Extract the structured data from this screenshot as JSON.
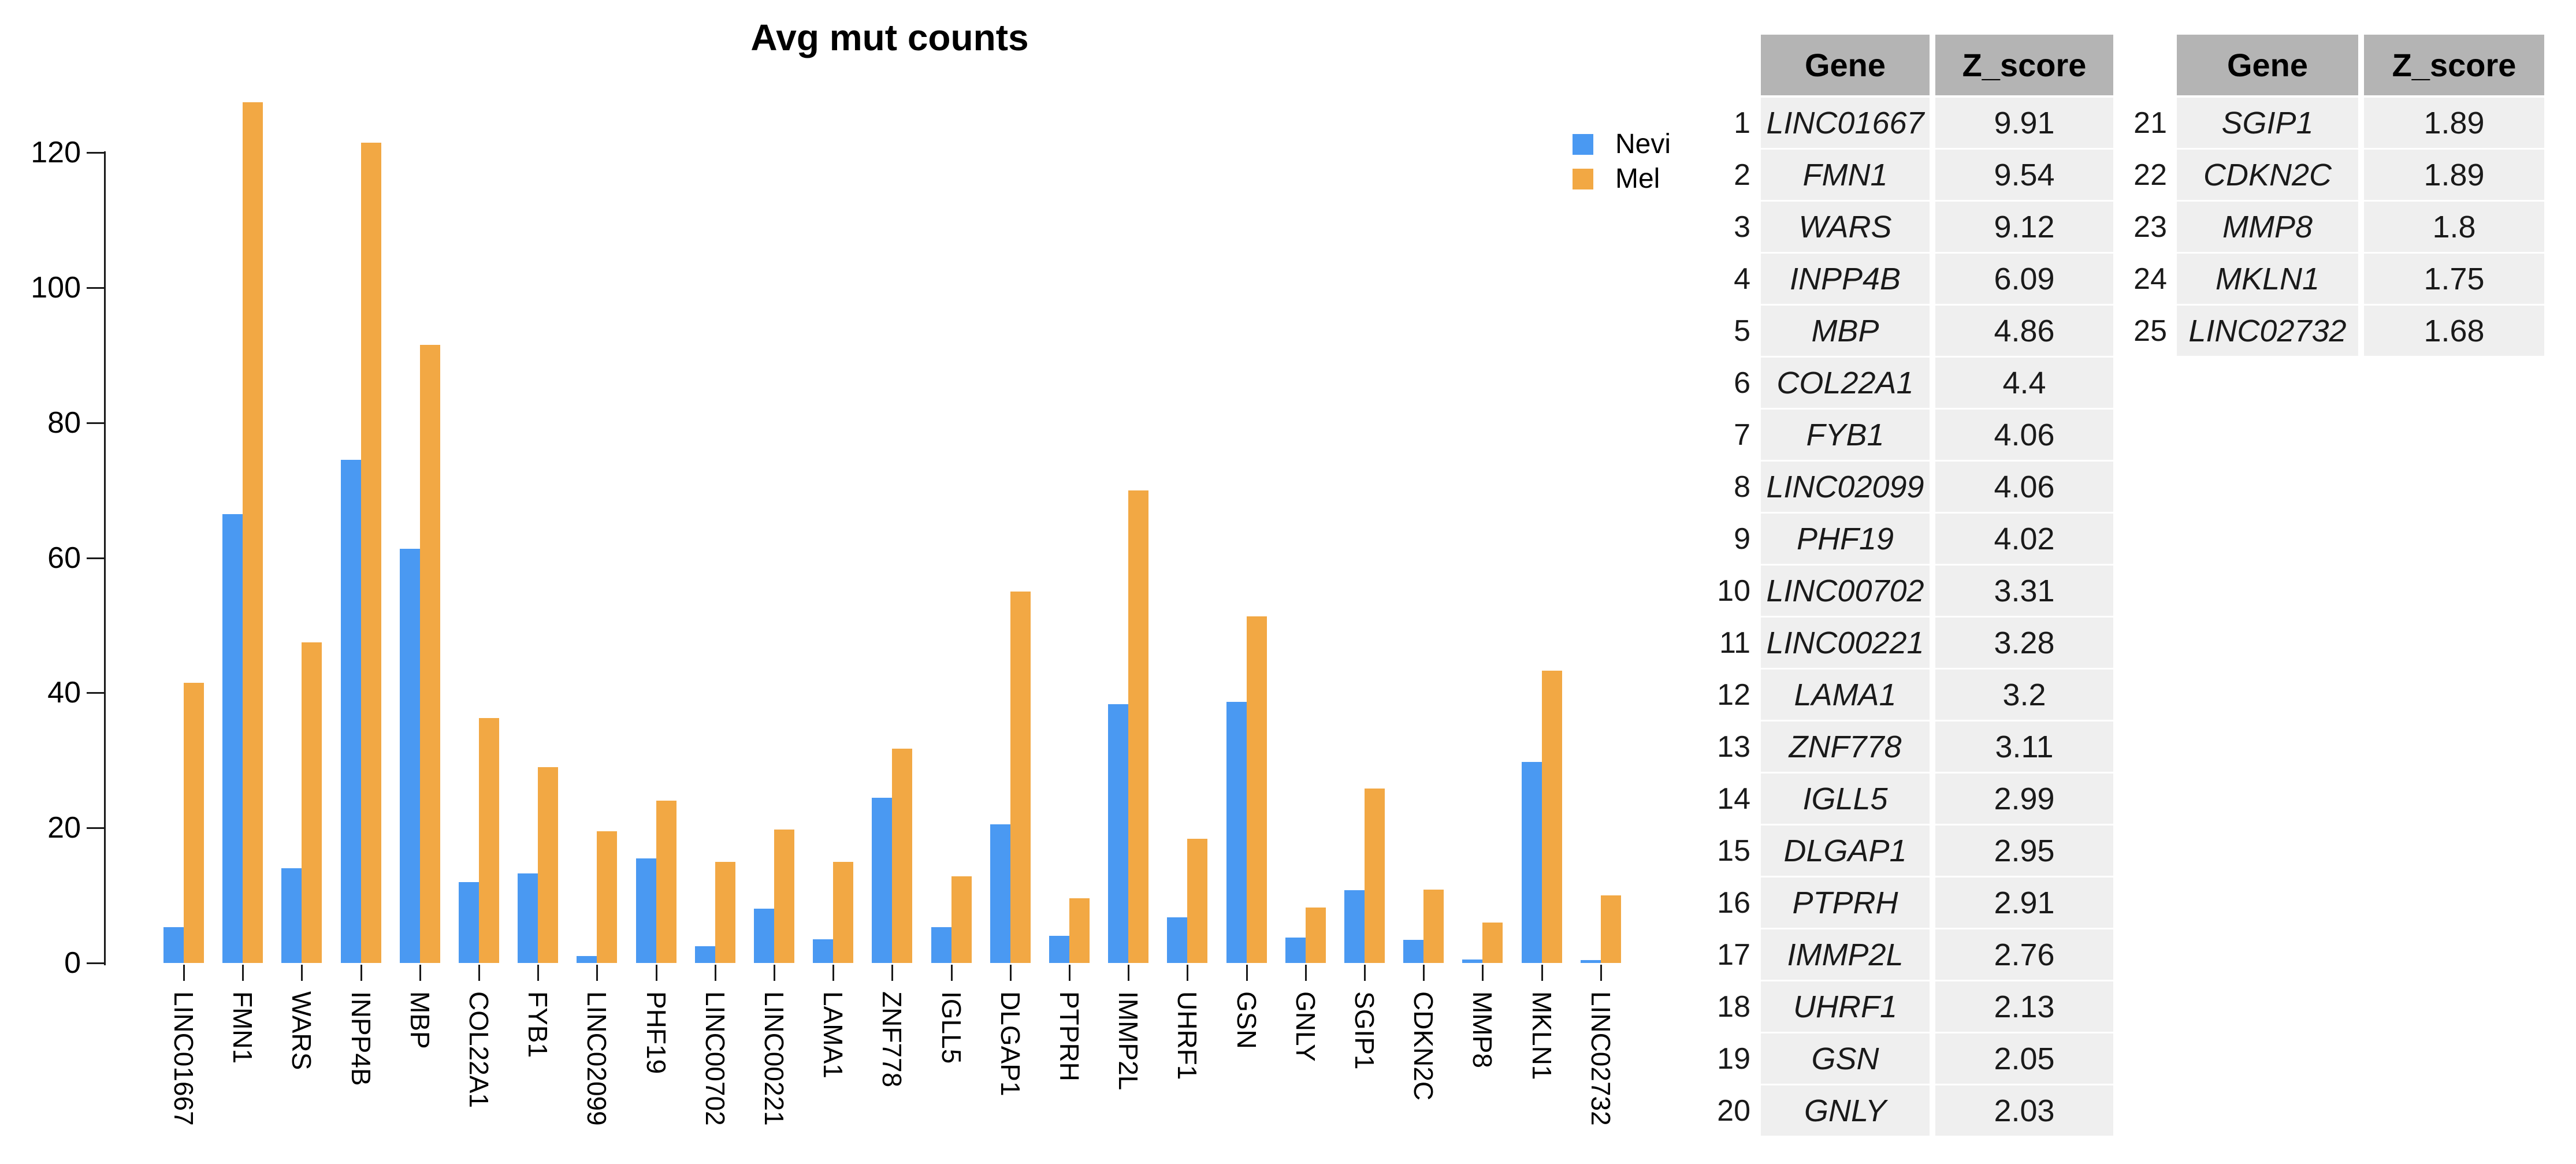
{
  "title": "Avg mut counts",
  "legend": {
    "items": [
      {
        "label": "Nevi",
        "color": "#4a99f2"
      },
      {
        "label": "Mel",
        "color": "#f2a844"
      }
    ]
  },
  "chart_data": {
    "type": "bar",
    "title": "Avg mut counts",
    "categories": [
      "LINC01667",
      "FMN1",
      "WARS",
      "INPP4B",
      "MBP",
      "COL22A1",
      "FYB1",
      "LINC02099",
      "PHF19",
      "LINC00702",
      "LINC00221",
      "LAMA1",
      "ZNF778",
      "IGLL5",
      "DLGAP1",
      "PTPRH",
      "IMMP2L",
      "UHRF1",
      "GSN",
      "GNLY",
      "SGIP1",
      "CDKN2C",
      "MMP8",
      "MKLN1",
      "LINC02732"
    ],
    "series": [
      {
        "name": "Nevi",
        "color": "#4a99f2",
        "values": [
          5.3,
          66.5,
          14,
          74.5,
          61.3,
          12,
          13.3,
          1,
          15.5,
          2.5,
          8,
          3.5,
          24.5,
          5.3,
          20.5,
          4,
          38.3,
          6.8,
          38.7,
          3.8,
          10.8,
          3.4,
          0.5,
          29.8,
          0.4
        ]
      },
      {
        "name": "Mel",
        "color": "#f2a844",
        "values": [
          41.5,
          127.5,
          47.5,
          121.5,
          91.5,
          36.3,
          29,
          19.5,
          24,
          15,
          19.8,
          15,
          31.7,
          12.8,
          55,
          9.6,
          70,
          18.4,
          51.3,
          8.2,
          25.8,
          10.9,
          6,
          43.3,
          10
        ]
      }
    ],
    "xlabel": "",
    "ylabel": "",
    "ylim": [
      0,
      130
    ],
    "yticks": [
      0,
      20,
      40,
      60,
      80,
      100,
      120
    ],
    "grid": false,
    "legend_position": "top-right"
  },
  "tables": [
    {
      "headers": [
        "Gene",
        "Z_score"
      ],
      "rows": [
        {
          "rank": "1",
          "gene": "LINC01667",
          "z": "9.91"
        },
        {
          "rank": "2",
          "gene": "FMN1",
          "z": "9.54"
        },
        {
          "rank": "3",
          "gene": "WARS",
          "z": "9.12"
        },
        {
          "rank": "4",
          "gene": "INPP4B",
          "z": "6.09"
        },
        {
          "rank": "5",
          "gene": "MBP",
          "z": "4.86"
        },
        {
          "rank": "6",
          "gene": "COL22A1",
          "z": "4.4"
        },
        {
          "rank": "7",
          "gene": "FYB1",
          "z": "4.06"
        },
        {
          "rank": "8",
          "gene": "LINC02099",
          "z": "4.06"
        },
        {
          "rank": "9",
          "gene": "PHF19",
          "z": "4.02"
        },
        {
          "rank": "10",
          "gene": "LINC00702",
          "z": "3.31"
        },
        {
          "rank": "11",
          "gene": "LINC00221",
          "z": "3.28"
        },
        {
          "rank": "12",
          "gene": "LAMA1",
          "z": "3.2"
        },
        {
          "rank": "13",
          "gene": "ZNF778",
          "z": "3.11"
        },
        {
          "rank": "14",
          "gene": "IGLL5",
          "z": "2.99"
        },
        {
          "rank": "15",
          "gene": "DLGAP1",
          "z": "2.95"
        },
        {
          "rank": "16",
          "gene": "PTPRH",
          "z": "2.91"
        },
        {
          "rank": "17",
          "gene": "IMMP2L",
          "z": "2.76"
        },
        {
          "rank": "18",
          "gene": "UHRF1",
          "z": "2.13"
        },
        {
          "rank": "19",
          "gene": "GSN",
          "z": "2.05"
        },
        {
          "rank": "20",
          "gene": "GNLY",
          "z": "2.03"
        }
      ]
    },
    {
      "headers": [
        "Gene",
        "Z_score"
      ],
      "rows": [
        {
          "rank": "21",
          "gene": "SGIP1",
          "z": "1.89"
        },
        {
          "rank": "22",
          "gene": "CDKN2C",
          "z": "1.89"
        },
        {
          "rank": "23",
          "gene": "MMP8",
          "z": "1.8"
        },
        {
          "rank": "24",
          "gene": "MKLN1",
          "z": "1.75"
        },
        {
          "rank": "25",
          "gene": "LINC02732",
          "z": "1.68"
        }
      ]
    }
  ],
  "colors": {
    "nevi": "#4a99f2",
    "mel": "#f2a844",
    "table_header_bg": "#b4b4b4",
    "table_row_bg": "#efefef",
    "axis": "#1a1a1a"
  }
}
